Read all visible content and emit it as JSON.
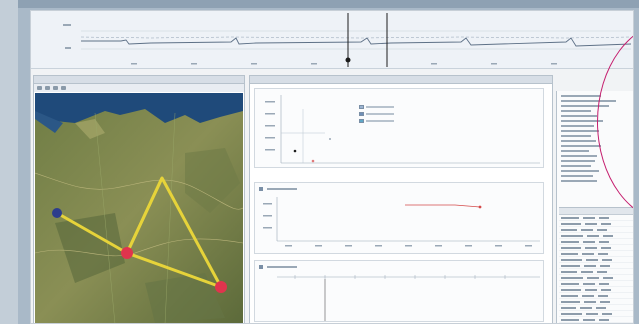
{
  "colors": {
    "route": "#e6d33a",
    "marker_red": "#e0344d",
    "marker_blue": "#2d3d8c",
    "lens": "#c51e6e",
    "trace": "#5e7187",
    "cursor": "#1c1c1c",
    "plot_marker": "#d44a4a"
  },
  "map": {
    "markers": [
      {
        "name": "map-marker-red-west",
        "color": "red"
      },
      {
        "name": "map-marker-red-east",
        "color": "red"
      },
      {
        "name": "map-marker-blue",
        "color": "blue"
      }
    ]
  },
  "panels": {
    "waveform": "oscilloscope-trace",
    "map": "satellite-map",
    "charts": [
      "scatter-chart",
      "line-chart",
      "timeline-chart"
    ],
    "properties": "property-panel"
  }
}
